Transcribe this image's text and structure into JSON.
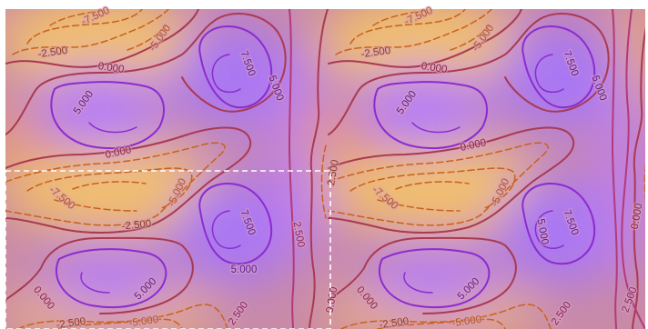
{
  "chart_data": {
    "type": "contour",
    "title": "",
    "xlabel": "",
    "ylabel": "",
    "tiles": 2,
    "levels": [
      -7.5,
      -5.0,
      -2.5,
      0.0,
      2.5,
      5.0,
      7.5
    ],
    "visible_labels": [
      "-7.500",
      "-5.000",
      "-2.500",
      "0.000",
      "2.500",
      "5.000",
      "7.500"
    ],
    "color_low": "#f2c06c",
    "color_mid": "#d7878f",
    "color_high": "#b57cf5",
    "negative_line_color": "#c8621c",
    "zero_line_color": "#a93a52",
    "positive_line_color": "#8a2ccf",
    "highlight_box_color": "#ffffff"
  },
  "labels": {
    "t1_neg7500": "-7.500",
    "t1_neg2500_a": "-2.500",
    "t1_zero_a": "0.000",
    "t1_neg5000_a": "-5.000",
    "t1_pos7500_a": "7.500",
    "t1_pos5000_a": "5.000",
    "t1_pos5000_b": "5.000",
    "t1_zero_b": "0.000",
    "t1_neg7500_b": "-7.500",
    "t1_neg5000_b": "-5.000",
    "t1_neg2500_b": "-2.500",
    "t1_pos7500_b": "7.500",
    "t1_pos5000_c": "5.000",
    "t1_pos2500": "2.500",
    "t1_pos5000_d": "5.000",
    "t1_zero_c": "0.000",
    "t1_neg2500_c": "-2.500",
    "t1_neg5000_c": "-5.000",
    "t1_pos2500_b": "2.500",
    "t1_neg2500_d": "-2.500",
    "t1_zero_d": "0.000",
    "t2_neg7500": "-7.500",
    "t2_neg2500_a": "-2.500",
    "t2_zero_a": "0.000",
    "t2_neg5000_a": "-5.000",
    "t2_pos7500_a": "7.500",
    "t2_pos5000_a": "5.000",
    "t2_pos5000_b": "5.000",
    "t2_zero_b": "0.000",
    "t2_neg7500_b": "-7.500",
    "t2_neg5000_b": "-5.000",
    "t2_pos7500_b": "7.500",
    "t2_pos5000_c": "5.000",
    "t2_pos5000_d": "5.000",
    "t2_zero_c": "0.000",
    "t2_neg2500_c": "-2.500",
    "t2_neg5000_c": "-5.000",
    "t2_pos2500_b": "2.500",
    "t2_pos2500_c": "2.500",
    "t2_zero_d": "0.000"
  }
}
